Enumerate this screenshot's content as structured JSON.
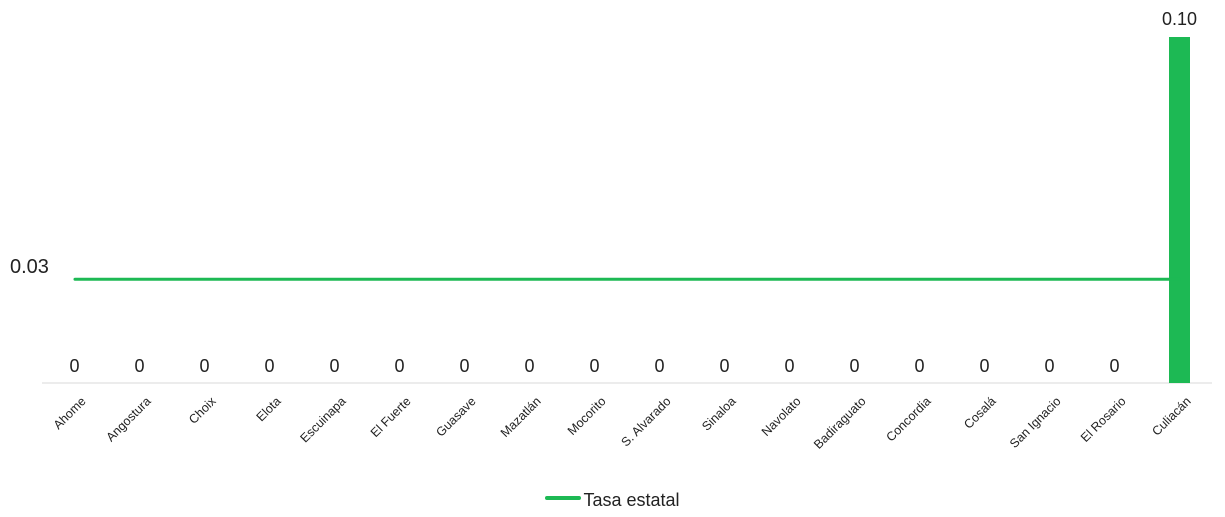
{
  "chart_data": {
    "type": "bar",
    "categories": [
      "Ahome",
      "Angostura",
      "Choix",
      "Elota",
      "Escuinapa",
      "El Fuerte",
      "Guasave",
      "Mazatlán",
      "Mocorito",
      "S. Alvarado",
      "Sinaloa",
      "Navolato",
      "Badiraguato",
      "Concordia",
      "Cosalá",
      "San Ignacio",
      "El Rosario",
      "Culiacán"
    ],
    "values": [
      0,
      0,
      0,
      0,
      0,
      0,
      0,
      0,
      0,
      0,
      0,
      0,
      0,
      0,
      0,
      0,
      0,
      0.1
    ],
    "value_labels": [
      "0",
      "0",
      "0",
      "0",
      "0",
      "0",
      "0",
      "0",
      "0",
      "0",
      "0",
      "0",
      "0",
      "0",
      "0",
      "0",
      "0",
      "0.10"
    ],
    "series": [
      {
        "name": "Tasa estatal",
        "type": "line",
        "value": 0.03,
        "value_label": "0.03"
      }
    ],
    "ylim": [
      0,
      0.1
    ],
    "grid": false,
    "legend_position": "bottom",
    "colors": {
      "bar": "#1db954",
      "line": "#1db954",
      "axis": "#d9d9d9"
    }
  }
}
